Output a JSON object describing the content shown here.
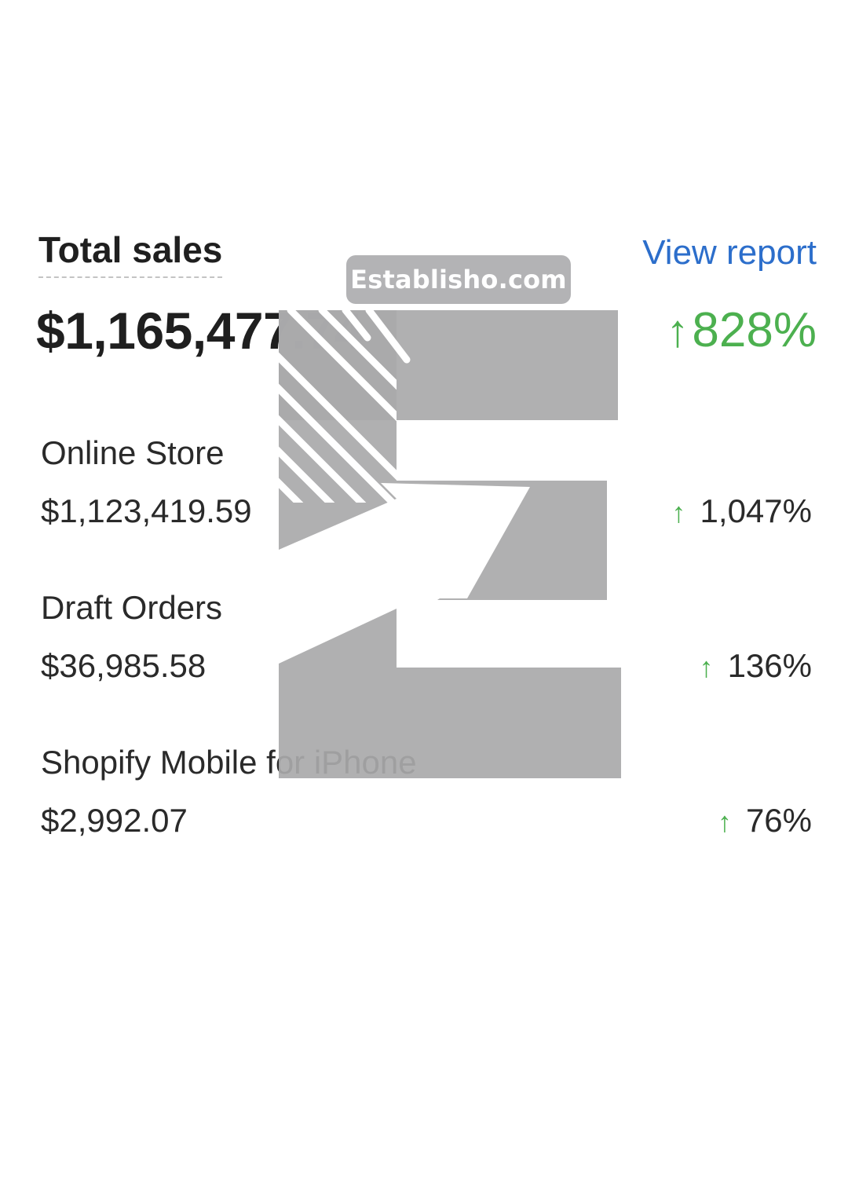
{
  "header": {
    "title": "Total sales",
    "view_report_label": "View report"
  },
  "total": {
    "amount": "$1,165,477.74",
    "change": "828%",
    "change_direction": "up",
    "change_color": "#4cb04f"
  },
  "channels": [
    {
      "name": "Online Store",
      "amount": "$1,123,419.59",
      "change": "1,047%",
      "change_direction": "up"
    },
    {
      "name": "Draft Orders",
      "amount": "$36,985.58",
      "change": "136%",
      "change_direction": "up"
    },
    {
      "name": "Shopify Mobile for iPhone",
      "amount": "$2,992.07",
      "change": "76%",
      "change_direction": "up"
    }
  ],
  "icons": {
    "up_arrow": "↑"
  },
  "watermark": {
    "label": "Establisho.com",
    "logo": "establisho-e-logo"
  },
  "colors": {
    "link": "#2c6ecb",
    "positive": "#4cb04f",
    "watermark": "#a9a9aa"
  }
}
